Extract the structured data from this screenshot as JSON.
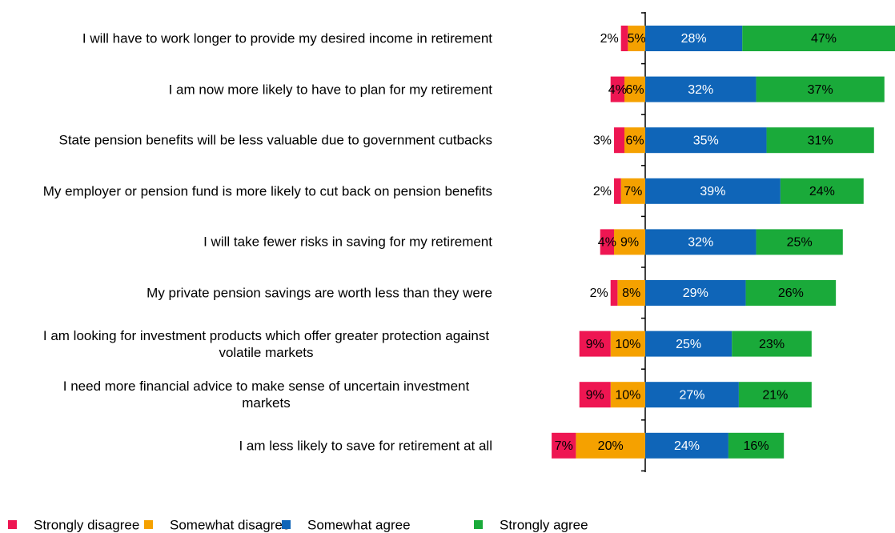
{
  "chart_data": {
    "type": "diverging-bar",
    "categories": [
      "I will have to work longer to provide my desired income in retirement",
      "I am now more likely to have to plan for my retirement",
      "State pension benefits will be less valuable due to government cutbacks",
      "My employer or pension fund is more likely to cut back on pension benefits",
      "I will take fewer risks in saving for my retirement",
      "My private pension savings are worth less than they were",
      "I am looking for investment products which offer greater protection against volatile markets",
      "I need more financial advice to make sense of uncertain investment markets",
      "I am less likely to save for retirement at all"
    ],
    "series": [
      {
        "name": "Strongly disagree",
        "color": "#ee1652",
        "side": "left",
        "values": [
          2,
          4,
          3,
          2,
          4,
          2,
          9,
          9,
          7
        ],
        "value_labels": [
          "2%",
          "4%",
          "3%",
          "2%",
          "4%",
          "2%",
          "9%",
          "9%",
          "7%"
        ]
      },
      {
        "name": "Somewhat disagree",
        "color": "#f5a100",
        "side": "left",
        "values": [
          5,
          6,
          6,
          7,
          9,
          8,
          10,
          10,
          20
        ],
        "value_labels": [
          "5%",
          "6%",
          "6%",
          "7%",
          "9%",
          "8%",
          "10%",
          "10%",
          "20%"
        ]
      },
      {
        "name": "Somewhat agree",
        "color": "#0f65b8",
        "side": "right",
        "values": [
          28,
          32,
          35,
          39,
          32,
          29,
          25,
          27,
          24
        ],
        "value_labels": [
          "28%",
          "32%",
          "35%",
          "39%",
          "32%",
          "29%",
          "25%",
          "27%",
          "24%"
        ]
      },
      {
        "name": "Strongly agree",
        "color": "#1aaa3a",
        "side": "right",
        "values": [
          47,
          37,
          31,
          24,
          25,
          26,
          23,
          21,
          16
        ],
        "value_labels": [
          "47%",
          "37%",
          "31%",
          "24%",
          "25%",
          "26%",
          "23%",
          "21%",
          "16%"
        ]
      }
    ]
  }
}
